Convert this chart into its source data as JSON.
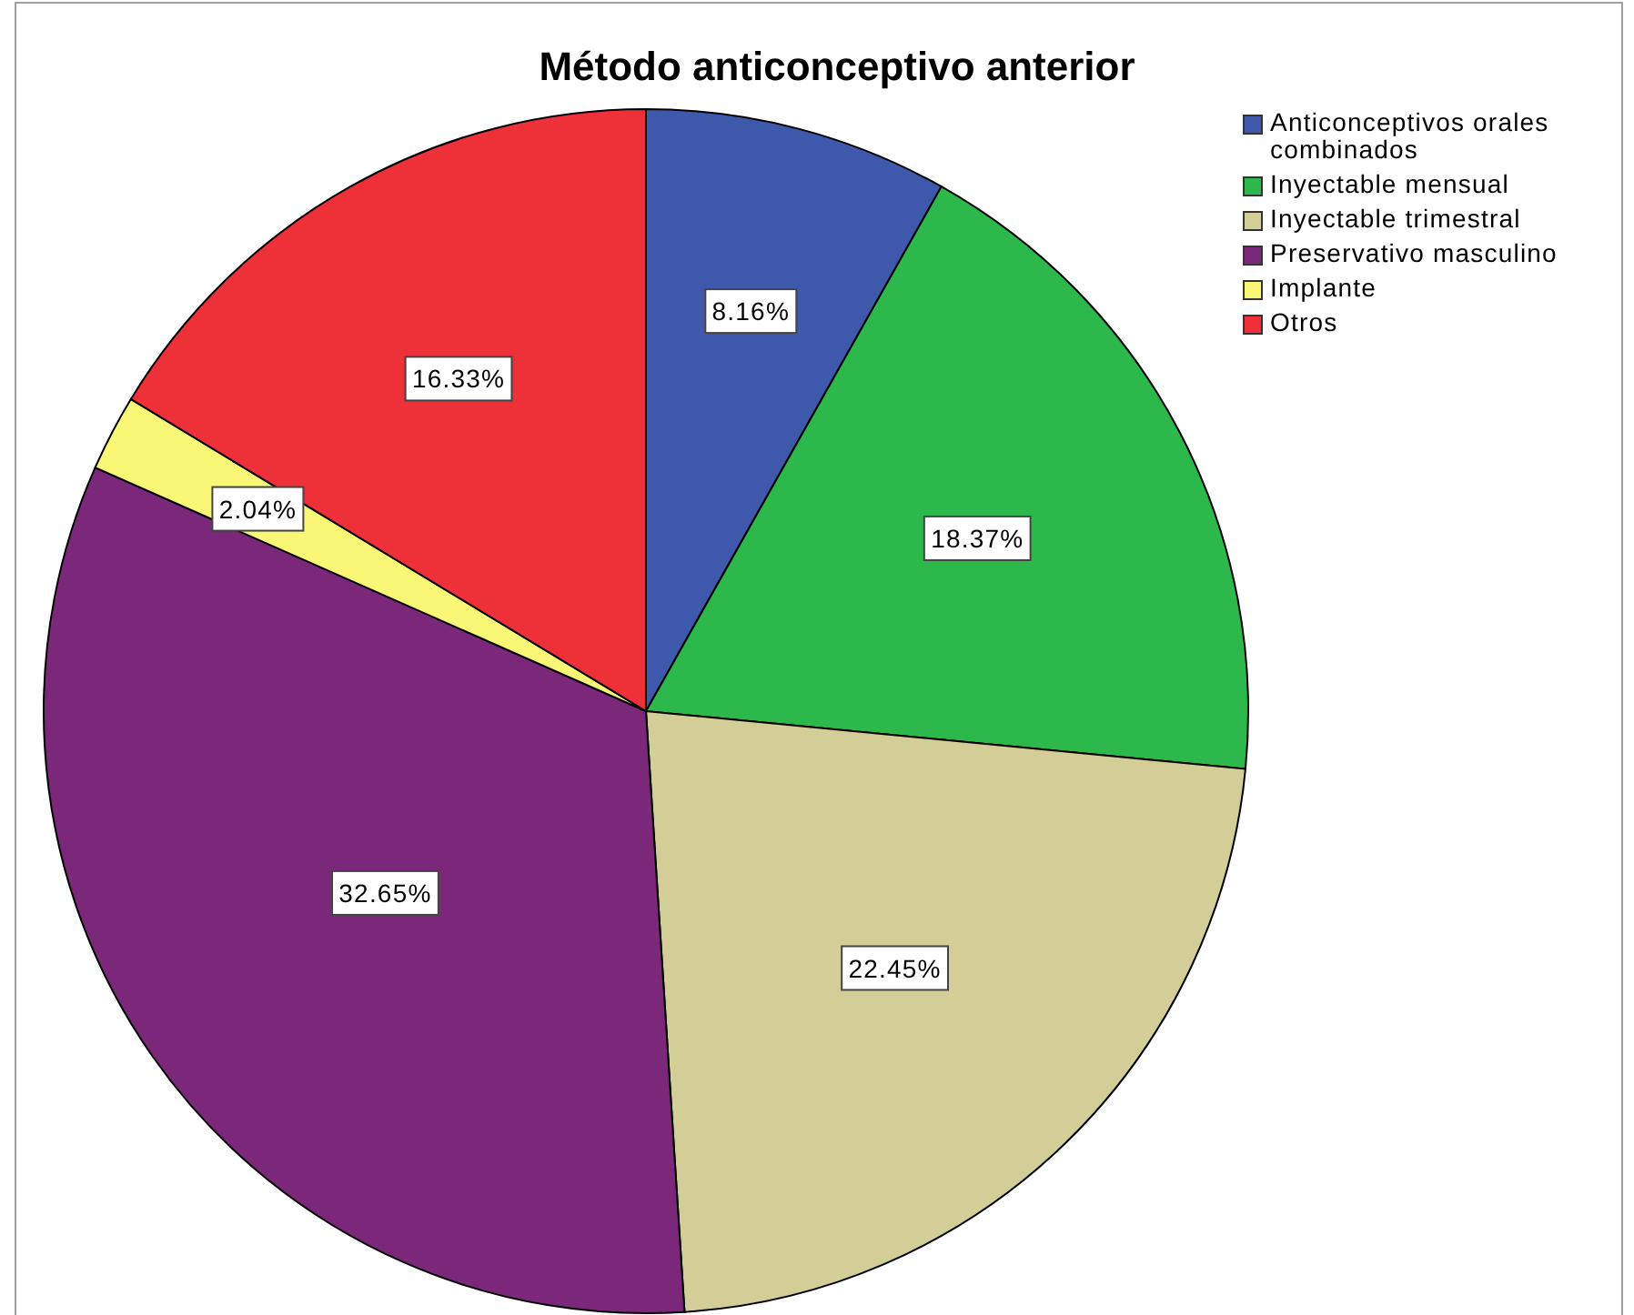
{
  "chart_data": {
    "type": "pie",
    "title": "Método anticonceptivo anterior",
    "categories": [
      "Anticonceptivos orales combinados",
      "Inyectable mensual",
      "Inyectable trimestral",
      "Preservativo masculino",
      "Implante",
      "Otros"
    ],
    "values": [
      8.16,
      18.37,
      22.45,
      32.65,
      2.04,
      16.33
    ],
    "colors": [
      "#3e58ac",
      "#2db84b",
      "#d3ce98",
      "#7b287b",
      "#f9f775",
      "#ee3039"
    ],
    "value_labels": [
      "8.16%",
      "18.37%",
      "22.45%",
      "32.65%",
      "2.04%",
      "16.33%"
    ],
    "legend": "top right"
  }
}
